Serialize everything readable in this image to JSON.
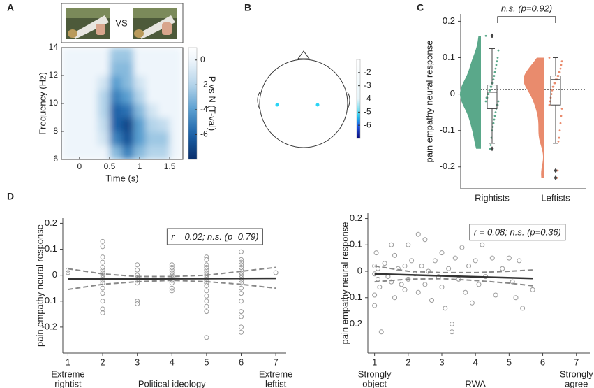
{
  "panel_labels": [
    "A",
    "B",
    "C",
    "D"
  ],
  "chart_data": [
    {
      "type": "heatmap",
      "stimulus_label": "VS",
      "xlabel": "Time (s)",
      "ylabel": "Frequency (Hz)",
      "colorbar_label": "P vs N (T-val)",
      "x": [
        -0.2,
        0,
        0.2,
        0.4,
        0.6,
        0.8,
        1.0,
        1.2,
        1.4,
        1.6
      ],
      "y": [
        6.5,
        7.5,
        8.5,
        9.5,
        10.5,
        11.5,
        12.5,
        13.5
      ],
      "z": [
        [
          0,
          0,
          0,
          0,
          -3,
          -5,
          -3,
          -2,
          -2,
          0
        ],
        [
          0,
          0,
          0,
          -1,
          -5,
          -6.5,
          -4,
          -2.5,
          -2.5,
          0
        ],
        [
          0,
          0,
          0,
          -1.5,
          -6,
          -7,
          -4,
          -2,
          -1.5,
          0
        ],
        [
          0,
          0,
          0,
          -2,
          -6,
          -5.5,
          -3,
          -1,
          0,
          0
        ],
        [
          0,
          0,
          0,
          -2,
          -5,
          -4,
          -2,
          0,
          0,
          0
        ],
        [
          0,
          0,
          0,
          -1,
          -4,
          -3,
          -1,
          0,
          0,
          0
        ],
        [
          0,
          0,
          0,
          0,
          -3,
          -3,
          0,
          0,
          0,
          0
        ],
        [
          0,
          0,
          0,
          0,
          -2.5,
          -2.5,
          0,
          0,
          0,
          0
        ]
      ],
      "xlim": [
        -0.3,
        1.72
      ],
      "xticks": [
        0,
        0.5,
        1,
        1.5
      ],
      "ylim": [
        6,
        14
      ],
      "yticks": [
        6,
        8,
        10,
        12,
        14
      ],
      "clim": [
        -8,
        1
      ],
      "cticks": [
        0,
        -2,
        -4,
        -6
      ]
    },
    {
      "type": "topomap",
      "clim": [
        -7,
        -1
      ],
      "cticks": [
        -2,
        -3,
        -4,
        -5,
        -6
      ]
    },
    {
      "type": "raincloud",
      "ylabel": "pain empathy neural response",
      "annotation": "n.s. (p=0.92)",
      "ylim": [
        -0.26,
        0.22
      ],
      "yticks": [
        0.2,
        0.1,
        0,
        -0.1,
        -0.2
      ],
      "ref_line": 0.012,
      "groups": [
        {
          "name": "Rightists",
          "color": "#5aa88a",
          "values": [
            0.16,
            0.12,
            0.1,
            0.09,
            0.08,
            0.07,
            0.06,
            0.05,
            0.04,
            0.03,
            0.03,
            0.02,
            0.02,
            0.01,
            0.01,
            0,
            0,
            -0.01,
            -0.01,
            -0.02,
            -0.02,
            -0.03,
            -0.03,
            -0.04,
            -0.05,
            -0.06,
            -0.07,
            -0.08,
            -0.09,
            -0.1,
            -0.12,
            -0.14,
            -0.15
          ],
          "box": [
            -0.135,
            -0.04,
            0.005,
            0.025,
            0.125
          ],
          "outliers": [
            0.16,
            -0.15
          ]
        },
        {
          "name": "Leftists",
          "color": "#e98b6d",
          "values": [
            0.1,
            0.09,
            0.08,
            0.07,
            0.06,
            0.06,
            0.05,
            0.05,
            0.04,
            0.04,
            0.04,
            0.03,
            0.03,
            0.02,
            0.02,
            0.01,
            0,
            -0.01,
            -0.02,
            -0.03,
            -0.04,
            -0.06,
            -0.08,
            -0.1,
            -0.12,
            -0.13,
            -0.21,
            -0.23
          ],
          "box": [
            -0.135,
            -0.03,
            0.04,
            0.05,
            0.1
          ],
          "outliers": [
            -0.21,
            -0.23
          ]
        }
      ]
    },
    {
      "type": "scatter",
      "xlabel": "Political ideology",
      "ylabel": "pain empathy neural response",
      "annotation": "r = 0.02; n.s. (p=0.79)",
      "x_end_labels": [
        [
          "Extreme",
          "rightist"
        ],
        [
          "Extreme",
          "leftist"
        ]
      ],
      "xlim": [
        0.85,
        7.3
      ],
      "xticks": [
        1,
        2,
        3,
        4,
        5,
        6,
        7
      ],
      "ylim": [
        -0.3,
        0.22
      ],
      "yticks": [
        0.2,
        0.1,
        0,
        -0.1,
        -0.2
      ],
      "points": {
        "x": [
          1,
          1,
          2,
          2,
          2,
          2,
          2,
          2,
          2,
          2,
          2,
          2,
          2,
          2,
          2,
          2,
          2,
          2,
          3,
          3,
          3,
          3,
          3,
          3,
          3,
          3,
          4,
          4,
          4,
          4,
          4,
          4,
          4,
          4,
          4,
          4,
          5,
          5,
          5,
          5,
          5,
          5,
          5,
          5,
          5,
          5,
          5,
          5,
          5,
          5,
          5,
          5,
          5,
          6,
          6,
          6,
          6,
          6,
          6,
          6,
          6,
          6,
          6,
          6,
          6,
          6,
          6,
          6,
          6,
          6,
          6,
          7
        ],
        "y": [
          0.02,
          0.01,
          0.13,
          0.11,
          0.07,
          0.05,
          0.03,
          0.02,
          0.01,
          0,
          -0.01,
          -0.02,
          -0.03,
          -0.05,
          -0.07,
          -0.1,
          -0.13,
          -0.145,
          0.04,
          0.02,
          0,
          -0.01,
          -0.02,
          -0.03,
          -0.1,
          -0.11,
          0.04,
          0.03,
          0.02,
          0.01,
          0,
          -0.01,
          -0.02,
          -0.03,
          -0.05,
          -0.06,
          0.07,
          0.06,
          0.04,
          0.03,
          0.02,
          0.01,
          0,
          -0.01,
          -0.02,
          -0.03,
          -0.04,
          -0.06,
          -0.08,
          -0.1,
          -0.12,
          -0.14,
          -0.24,
          0.09,
          0.06,
          0.05,
          0.04,
          0.03,
          0.02,
          0.01,
          0,
          -0.01,
          -0.02,
          -0.03,
          -0.05,
          -0.07,
          -0.1,
          -0.14,
          -0.16,
          -0.2,
          -0.22,
          0.01
        ]
      },
      "fit": {
        "x": [
          1,
          7
        ],
        "y": [
          -0.015,
          -0.012
        ]
      },
      "ci_upper": {
        "x": [
          1,
          2,
          3,
          4,
          5,
          6,
          7
        ],
        "y": [
          0.025,
          0.005,
          -0.005,
          -0.005,
          0,
          0.015,
          0.03
        ]
      },
      "ci_lower": {
        "x": [
          1,
          2,
          3,
          4,
          5,
          6,
          7
        ],
        "y": [
          -0.055,
          -0.035,
          -0.025,
          -0.02,
          -0.025,
          -0.035,
          -0.05
        ]
      }
    },
    {
      "type": "scatter",
      "xlabel": "RWA",
      "ylabel": "pain empathy neural response",
      "annotation": "r = 0.08; n.s. (p=0.36)",
      "x_end_labels": [
        [
          "Strongly",
          "object"
        ],
        [
          "Strongly",
          "agree"
        ]
      ],
      "xlim": [
        0.8,
        7.4
      ],
      "xticks": [
        1,
        2,
        3,
        4,
        5,
        6,
        7
      ],
      "ylim": [
        -0.31,
        0.22
      ],
      "yticks": [
        0.2,
        0.1,
        0,
        -0.1,
        -0.2
      ],
      "points": {
        "x": [
          1,
          1,
          1,
          1,
          1.05,
          1.1,
          1.1,
          1.15,
          1.2,
          1.3,
          1.4,
          1.5,
          1.5,
          1.6,
          1.6,
          1.7,
          1.8,
          1.9,
          1.9,
          2,
          2,
          2.1,
          2.2,
          2.3,
          2.3,
          2.4,
          2.5,
          2.5,
          2.6,
          2.7,
          2.8,
          2.9,
          3,
          3,
          3.1,
          3.2,
          3.3,
          3.3,
          3.4,
          3.5,
          3.6,
          3.7,
          3.8,
          3.9,
          4,
          4.1,
          4.2,
          4.3,
          4.5,
          4.6,
          4.8,
          5,
          5.1,
          5.2,
          5.3,
          5.4,
          5.7
        ],
        "y": [
          0.02,
          -0.01,
          -0.09,
          -0.13,
          0.07,
          0.01,
          -0.03,
          -0.06,
          -0.23,
          0.03,
          -0.02,
          0.1,
          -0.04,
          0.06,
          -0.1,
          0.01,
          -0.05,
          0.02,
          -0.07,
          0.1,
          -0.03,
          0.04,
          -0.01,
          0.14,
          -0.08,
          0.02,
          0.12,
          -0.05,
          0,
          -0.11,
          0.04,
          -0.02,
          0.07,
          -0.06,
          -0.14,
          0.01,
          -0.2,
          -0.23,
          0.05,
          -0.03,
          0.09,
          -0.08,
          0.02,
          -0.12,
          0.04,
          -0.05,
          0.1,
          -0.02,
          0.05,
          -0.09,
          0.01,
          0.05,
          -0.04,
          -0.1,
          0.04,
          -0.14,
          -0.07
        ]
      },
      "fit": {
        "x": [
          1,
          5.7
        ],
        "y": [
          -0.01,
          -0.027
        ]
      },
      "ci_upper": {
        "x": [
          1,
          2,
          3,
          4,
          5,
          5.7
        ],
        "y": [
          0.02,
          0,
          -0.005,
          -0.005,
          0,
          0.005
        ]
      },
      "ci_lower": {
        "x": [
          1,
          2,
          3,
          4,
          5,
          5.7
        ],
        "y": [
          -0.04,
          -0.03,
          -0.028,
          -0.035,
          -0.045,
          -0.055
        ]
      }
    }
  ]
}
